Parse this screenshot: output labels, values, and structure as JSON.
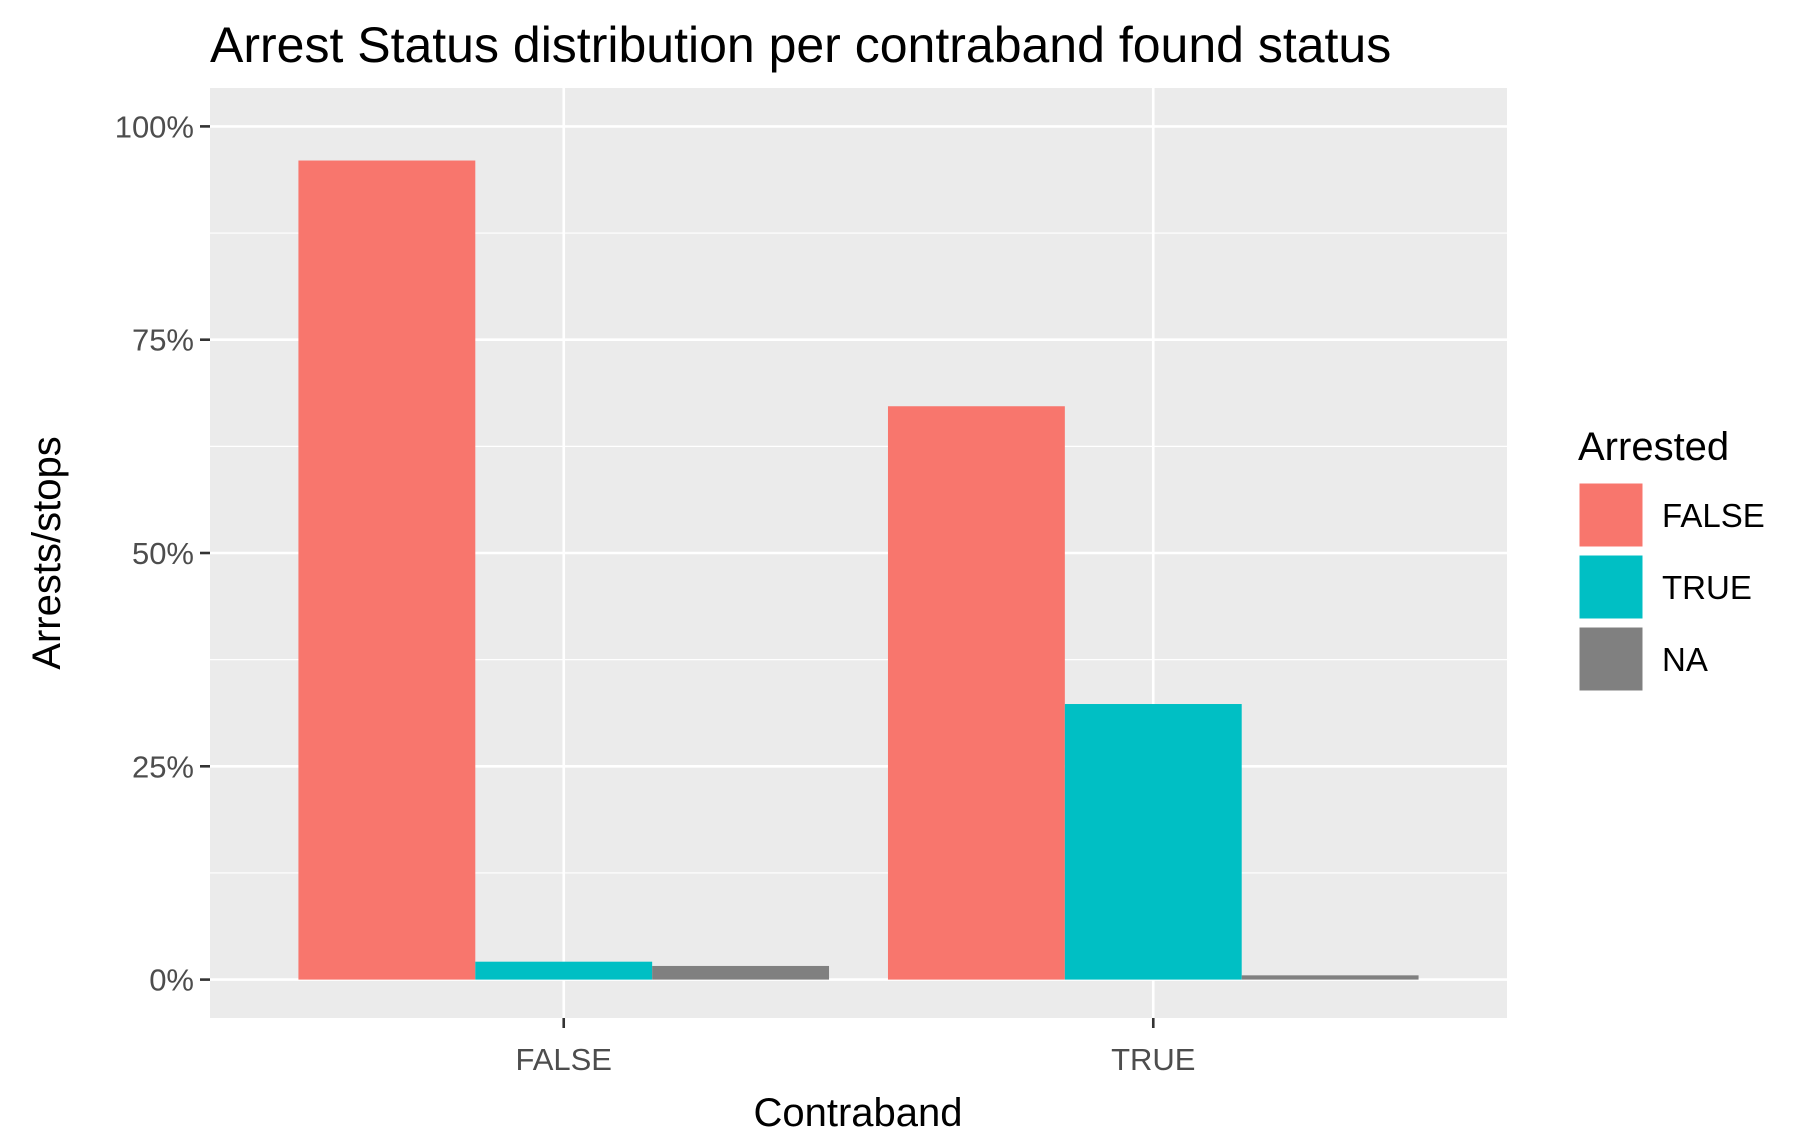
{
  "chart_data": {
    "type": "bar",
    "title": "Arrest Status distribution per contraband found status",
    "xlabel": "Contraband",
    "ylabel": "Arrests/stops",
    "categories": [
      "FALSE",
      "TRUE"
    ],
    "series": [
      {
        "name": "FALSE",
        "color": "#F8766D",
        "values": [
          96.0,
          67.2
        ]
      },
      {
        "name": "TRUE",
        "color": "#00BFC4",
        "values": [
          2.1,
          32.3
        ]
      },
      {
        "name": "NA",
        "color": "#808080",
        "values": [
          1.6,
          0.5
        ]
      }
    ],
    "ylim": [
      -4.5,
      104.5
    ],
    "yticks": [
      0,
      25,
      50,
      75,
      100
    ],
    "ytick_labels": [
      "0%",
      "25%",
      "50%",
      "75%",
      "100%"
    ],
    "legend_title": "Arrested",
    "legend_position": "right",
    "grid": true,
    "panel_background": "#EBEBEB"
  }
}
